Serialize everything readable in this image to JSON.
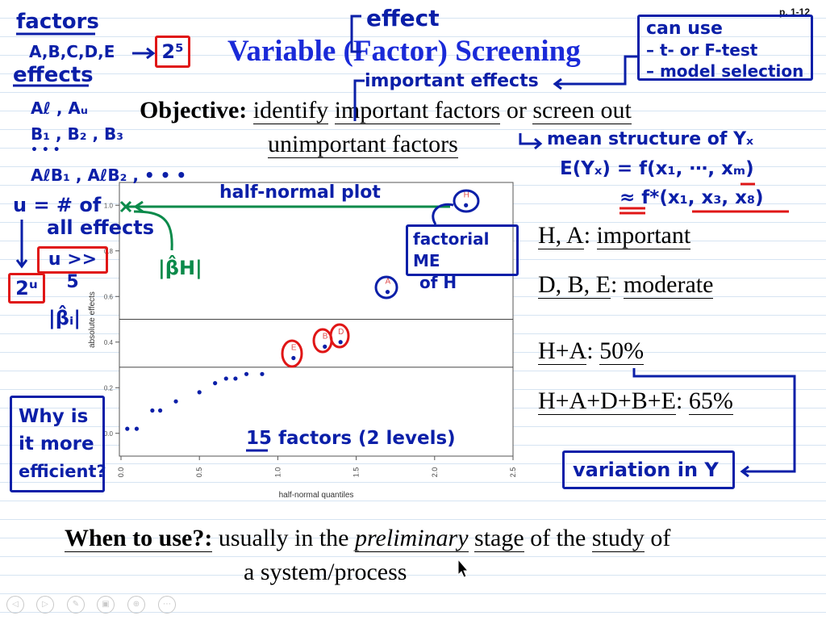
{
  "page": {
    "number": "p. 1-12"
  },
  "slide": {
    "title": "Variable (Factor) Screening",
    "objective_label": "Objective:",
    "objective_w1": "identify",
    "objective_w2": "important factors",
    "objective_w3": "or",
    "objective_w4": "screen out",
    "objective_line2": "unimportant factors",
    "results": [
      {
        "a": "H, A",
        "sep": ":",
        "b": "important"
      },
      {
        "a": "D, B, E",
        "sep": ":",
        "b": "moderate"
      },
      {
        "a": "H+A",
        "sep": ":",
        "b": "50%"
      },
      {
        "a": "H+A+D+B+E",
        "sep": ":",
        "b": "65%"
      }
    ],
    "when_label": "When to use?:",
    "when_w1": "usually in the",
    "when_w2": "preliminary",
    "when_w3": "stage",
    "when_w4": "of the",
    "when_w5": "study",
    "when_w6": "of",
    "when_line2": "a system/process"
  },
  "annotations": {
    "factors": "factors",
    "factor_list": "A,B,C,D,E",
    "two_pow_5": "2⁵",
    "effects": "effects",
    "eff1": "Aℓ , Aᵤ",
    "eff2": "B₁ , B₂ , B₃",
    "eff3": "• • •",
    "eff4": "AℓB₁ , AℓB₂ , • • •",
    "u_def1": "u = # of",
    "u_def2": "all effects",
    "u_gg": "u >> 5",
    "two_pow_u": "2ᵘ",
    "beta_i": "|β̂ᵢ|",
    "beta_h": "|β̂H|",
    "why1": "Why is",
    "why2": "it more",
    "why3": "efficient?",
    "effect": "effect",
    "can_use": "can use",
    "can_use_1": "– t- or F-test",
    "can_use_2": "– model selection",
    "important_effects": "important effects",
    "mean_structure": "mean structure of Yₓ",
    "eq1": "E(Yₓ) = f(x₁, ⋯, xₘ)",
    "eq2": "≈ f*(x₁, x₃, x₈)",
    "half_normal": "half-normal plot",
    "factorial_me1": "factorial ME",
    "factorial_me2": "of H",
    "fifteen": "15 factors (2 levels)",
    "variation": "variation in Y"
  },
  "chart_data": {
    "type": "scatter",
    "xlabel": "half-normal quantiles",
    "ylabel": "absolute effects",
    "xlim": [
      0,
      2.5
    ],
    "ylim": [
      -0.1,
      1.1
    ],
    "xticks": [
      "0.0",
      "0.5",
      "1.0",
      "1.5",
      "2.0",
      "2.5"
    ],
    "yticks": [
      "0.0",
      "0.2",
      "0.4",
      "0.6",
      "0.8",
      "1.0"
    ],
    "hlines": [
      0.5,
      0.29
    ],
    "points": [
      {
        "x": 0.04,
        "y": 0.02,
        "label": ""
      },
      {
        "x": 0.1,
        "y": 0.02,
        "label": ""
      },
      {
        "x": 0.2,
        "y": 0.1,
        "label": ""
      },
      {
        "x": 0.25,
        "y": 0.1,
        "label": ""
      },
      {
        "x": 0.35,
        "y": 0.14,
        "label": ""
      },
      {
        "x": 0.5,
        "y": 0.18,
        "label": ""
      },
      {
        "x": 0.6,
        "y": 0.22,
        "label": ""
      },
      {
        "x": 0.67,
        "y": 0.24,
        "label": ""
      },
      {
        "x": 0.73,
        "y": 0.24,
        "label": ""
      },
      {
        "x": 0.8,
        "y": 0.26,
        "label": ""
      },
      {
        "x": 0.9,
        "y": 0.26,
        "label": ""
      },
      {
        "x": 1.1,
        "y": 0.33,
        "label": "E"
      },
      {
        "x": 1.3,
        "y": 0.38,
        "label": "B"
      },
      {
        "x": 1.4,
        "y": 0.4,
        "label": "D"
      },
      {
        "x": 1.7,
        "y": 0.62,
        "label": "A"
      },
      {
        "x": 2.2,
        "y": 1.0,
        "label": "H"
      }
    ]
  },
  "nav": {
    "prev": "◁",
    "next": "▷",
    "pen": "✎",
    "slides": "▣",
    "zoom": "⊕",
    "more": "⋯"
  },
  "colors": {
    "ink_blue": "#0b1fa8",
    "title_blue": "#1a2ad8",
    "ink_red": "#e01616",
    "ink_green": "#0a8a4a",
    "rule_line": "#d6e4f2"
  }
}
